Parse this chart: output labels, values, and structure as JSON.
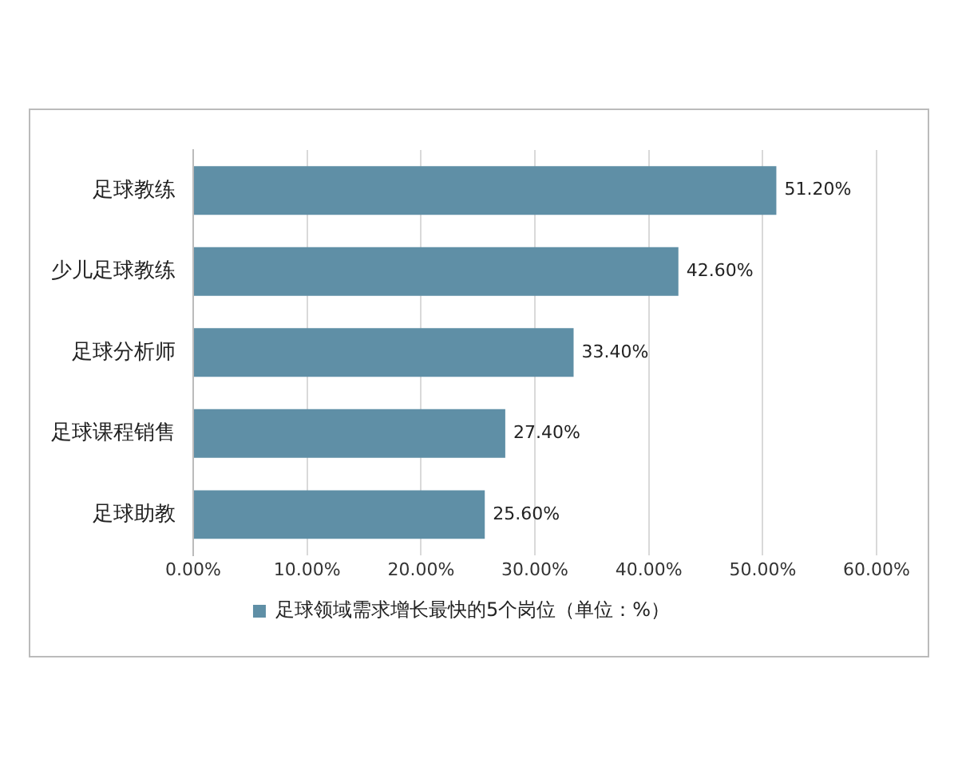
{
  "chart_data": {
    "type": "bar",
    "orientation": "horizontal",
    "categories": [
      "足球教练",
      "少儿足球教练",
      "足球分析师",
      "足球课程销售",
      "足球助教"
    ],
    "series": [
      {
        "name": "足球领域需求增长最快的5个岗位（单位：%）",
        "color": "#5f8fa6",
        "values": [
          51.2,
          42.6,
          33.4,
          27.4,
          25.6
        ],
        "value_labels": [
          "51.20%",
          "42.60%",
          "33.40%",
          "27.40%",
          "25.60%"
        ]
      }
    ],
    "xlim": [
      0,
      60
    ],
    "xticks": [
      {
        "value": 0,
        "label": "0.00%"
      },
      {
        "value": 10,
        "label": "10.00%"
      },
      {
        "value": 20,
        "label": "20.00%"
      },
      {
        "value": 30,
        "label": "30.00%"
      },
      {
        "value": 40,
        "label": "40.00%"
      },
      {
        "value": 50,
        "label": "50.00%"
      },
      {
        "value": 60,
        "label": "60.00%"
      }
    ],
    "grid": "x",
    "legend": "bottom"
  }
}
